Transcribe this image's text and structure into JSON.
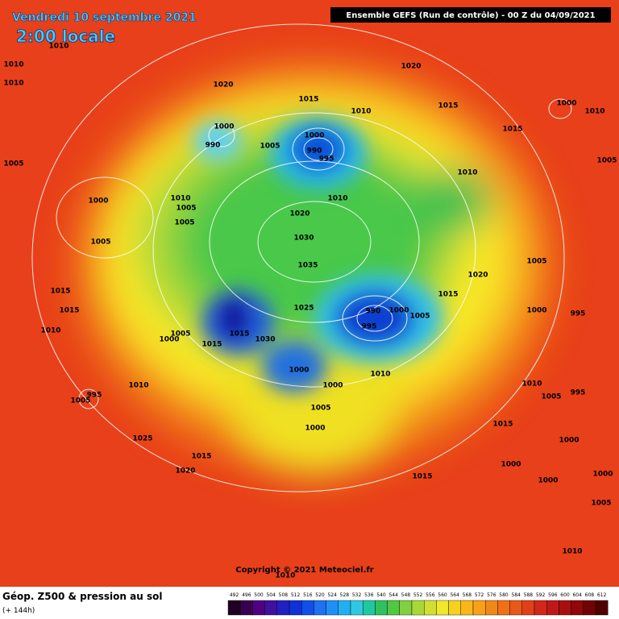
{
  "header": {
    "date": "Vendredi 10 septembre 2021",
    "time": "2:00 locale",
    "run": "Ensemble GEFS  (Run de contrôle)  -  00 Z du 04/09/2021"
  },
  "copyright": "Copyright © 2021 Meteociel.fr",
  "footer": {
    "title": "Géop. Z500 & pression au sol",
    "lead": "(+ 144h)"
  },
  "scale": {
    "labels": [
      492,
      496,
      500,
      504,
      508,
      512,
      516,
      520,
      524,
      528,
      532,
      536,
      540,
      544,
      548,
      552,
      556,
      560,
      564,
      568,
      572,
      576,
      580,
      584,
      588,
      592,
      596,
      600,
      604,
      608,
      612
    ]
  },
  "isobar_labels": [
    1010,
    1010,
    1010,
    1020,
    1020,
    1015,
    1010,
    1015,
    1000,
    990,
    1005,
    1000,
    990,
    995,
    1015,
    1000,
    1010,
    1005,
    1005,
    1010,
    1010,
    1000,
    1010,
    1005,
    1005,
    1020,
    1005,
    1030,
    1035,
    1005,
    1020,
    1015,
    1015,
    1015,
    1025,
    990,
    1000,
    1005,
    1000,
    995,
    1010,
    1005,
    1000,
    1015,
    1030,
    995,
    1015,
    1000,
    1010,
    1000,
    1010,
    1010,
    1005,
    995,
    995,
    1005,
    1005,
    1000,
    1015,
    1025,
    1000,
    1015,
    1020,
    1000,
    1000,
    1015,
    1000,
    1005,
    1010,
    1010
  ]
}
